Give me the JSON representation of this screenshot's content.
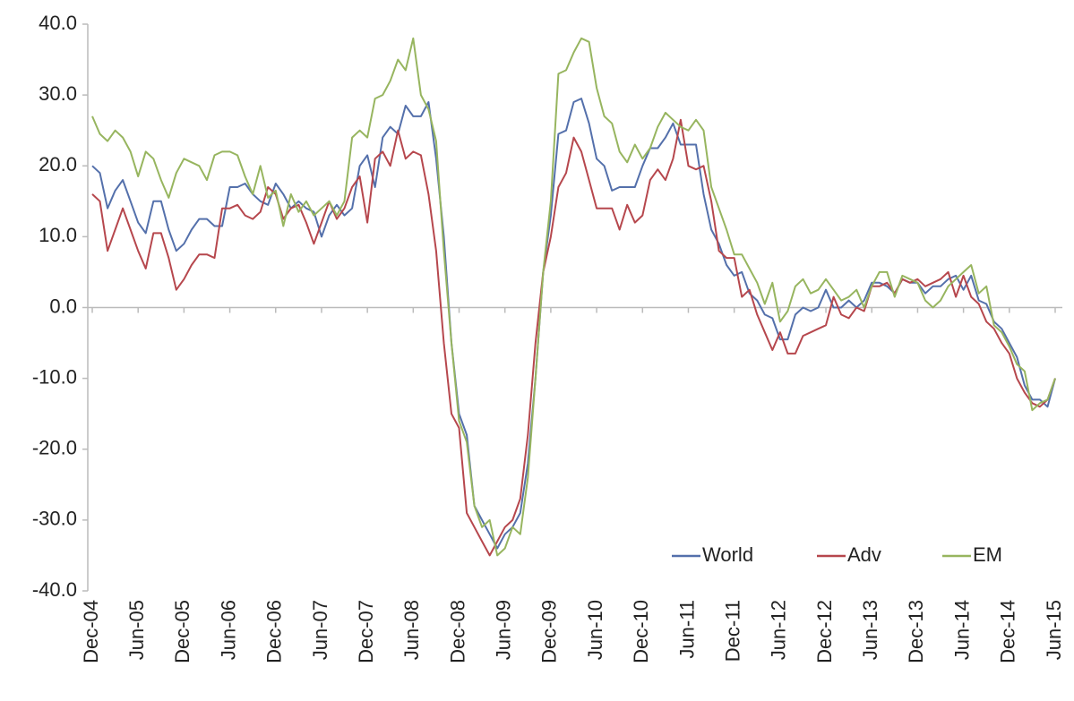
{
  "chart_data": {
    "type": "line",
    "categories": [
      "Dec-04",
      null,
      null,
      null,
      null,
      null,
      "Jun-05",
      null,
      null,
      null,
      null,
      null,
      "Dec-05",
      null,
      null,
      null,
      null,
      null,
      "Jun-06",
      null,
      null,
      null,
      null,
      null,
      "Dec-06",
      null,
      null,
      null,
      null,
      null,
      "Jun-07",
      null,
      null,
      null,
      null,
      null,
      "Dec-07",
      null,
      null,
      null,
      null,
      null,
      "Jun-08",
      null,
      null,
      null,
      null,
      null,
      "Dec-08",
      null,
      null,
      null,
      null,
      null,
      "Jun-09",
      null,
      null,
      null,
      null,
      null,
      "Dec-09",
      null,
      null,
      null,
      null,
      null,
      "Jun-10",
      null,
      null,
      null,
      null,
      null,
      "Dec-10",
      null,
      null,
      null,
      null,
      null,
      "Jun-11",
      null,
      null,
      null,
      null,
      null,
      "Dec-11",
      null,
      null,
      null,
      null,
      null,
      "Jun-12",
      null,
      null,
      null,
      null,
      null,
      "Dec-12",
      null,
      null,
      null,
      null,
      null,
      "Jun-13",
      null,
      null,
      null,
      null,
      null,
      "Dec-13",
      null,
      null,
      null,
      null,
      null,
      "Jun-14",
      null,
      null,
      null,
      null,
      null,
      "Dec-14",
      null,
      null,
      null,
      null,
      null,
      "Jun-15"
    ],
    "series": [
      {
        "name": "World",
        "color": "#5470ab",
        "values": [
          20,
          19,
          14,
          16.5,
          18,
          15,
          12,
          10.5,
          15,
          15,
          11,
          8,
          9,
          11,
          12.5,
          12.5,
          11.5,
          11.5,
          17,
          17,
          17.5,
          16,
          15,
          14.5,
          17.5,
          16,
          14,
          15,
          14,
          13.5,
          10,
          13,
          14.5,
          13,
          14,
          20,
          21.5,
          17,
          24,
          25.5,
          24.5,
          28.5,
          27,
          27,
          29,
          21,
          10,
          -5,
          -15,
          -18,
          -28,
          -30,
          -32,
          -34,
          -32,
          -31,
          -29,
          -22,
          -10,
          5,
          13,
          24.5,
          25,
          29,
          29.5,
          26,
          21,
          20,
          16.5,
          17,
          17,
          17,
          20,
          22.5,
          22.5,
          24,
          26,
          23,
          23,
          23,
          16,
          11,
          9,
          6,
          4.5,
          5,
          2,
          1,
          -1,
          -1.5,
          -4.5,
          -4.5,
          -1,
          0,
          -0.5,
          0,
          2.5,
          0,
          0,
          1,
          0,
          1,
          3.5,
          3.5,
          3,
          2,
          4,
          3.5,
          3.5,
          2,
          3,
          3,
          4,
          4.5,
          2.5,
          4.5,
          1,
          0.5,
          -2,
          -3,
          -5,
          -7,
          -11,
          -13,
          -13,
          -14,
          -10
        ]
      },
      {
        "name": "Adv",
        "color": "#b6474d",
        "values": [
          16,
          15,
          8,
          11,
          14,
          11,
          8,
          5.5,
          10.5,
          10.5,
          7,
          2.5,
          4,
          6,
          7.5,
          7.5,
          7,
          14,
          14,
          14.5,
          13,
          12.5,
          13.5,
          17,
          16,
          12.5,
          14,
          14.5,
          12,
          9,
          12,
          15,
          12.5,
          14,
          17,
          18.5,
          12,
          21,
          22,
          20,
          25,
          21,
          22,
          21.5,
          16,
          8,
          -5,
          -15,
          -17,
          -29,
          -31,
          -33,
          -35,
          -33,
          -31,
          -30,
          -27,
          -18,
          -5,
          5,
          10,
          17,
          19,
          24,
          22,
          18,
          14,
          14,
          14,
          11,
          14.5,
          12,
          13,
          18,
          19.5,
          18,
          21,
          26.5,
          20,
          19.5,
          20,
          15,
          8,
          7,
          7,
          1.5,
          2.5,
          -1,
          -3.5,
          -6,
          -3.5,
          -6.5,
          -6.5,
          -4,
          -3.5,
          -3,
          -2.5,
          1.5,
          -1,
          -1.5,
          0,
          -0.5,
          3,
          3,
          3.5,
          2,
          4,
          3.5,
          4,
          3,
          3.5,
          4,
          5,
          1.5,
          4.5,
          1.5,
          0.5,
          -2,
          -3,
          -5,
          -6.5,
          -10,
          -12,
          -13.5,
          -14,
          -13,
          -10
        ]
      },
      {
        "name": "EM",
        "color": "#97b55f",
        "values": [
          27,
          24.5,
          23.5,
          25,
          24,
          22,
          18.5,
          22,
          21,
          18,
          15.5,
          19,
          21,
          20.5,
          20,
          18,
          21.5,
          22,
          22,
          21.5,
          18.5,
          16,
          20,
          15.5,
          16.5,
          11.5,
          16,
          13.5,
          15,
          13,
          14,
          15,
          13,
          15,
          24,
          25,
          24,
          29.5,
          30,
          32,
          35,
          33.5,
          38,
          30,
          28,
          23.5,
          8,
          -5,
          -16,
          -19,
          -28,
          -31,
          -30,
          -35,
          -34,
          -31,
          -32,
          -24,
          -10,
          5,
          15,
          33,
          33.5,
          36,
          38,
          37.5,
          31,
          27,
          26,
          22,
          20.5,
          23,
          21,
          22.5,
          25.5,
          27.5,
          26.5,
          25.5,
          25,
          26.5,
          25,
          17,
          14,
          11,
          7.5,
          7.5,
          5.5,
          3.5,
          0.5,
          3.5,
          -2,
          -0.5,
          3,
          4,
          2,
          2.5,
          4,
          2.5,
          1,
          1.5,
          2.5,
          0,
          3,
          5,
          5,
          1.5,
          4.5,
          4,
          3.5,
          1,
          0,
          1,
          3,
          4,
          5,
          6,
          2,
          3,
          -2.5,
          -3.5,
          -5.5,
          -8,
          -9,
          -14.5,
          -13.5,
          -13,
          -10
        ]
      }
    ],
    "ylim": [
      -40,
      40
    ],
    "yticks": [
      {
        "value": -40,
        "label": "-40.0"
      },
      {
        "value": -30,
        "label": "-30.0"
      },
      {
        "value": -20,
        "label": "-20.0"
      },
      {
        "value": -10,
        "label": "-10.0"
      },
      {
        "value": 0,
        "label": "0.0"
      },
      {
        "value": 10,
        "label": "10.0"
      },
      {
        "value": 20,
        "label": "20.0"
      },
      {
        "value": 30,
        "label": "30.0"
      },
      {
        "value": 40,
        "label": "40.0"
      }
    ],
    "grid": false,
    "legend": "lower right"
  }
}
